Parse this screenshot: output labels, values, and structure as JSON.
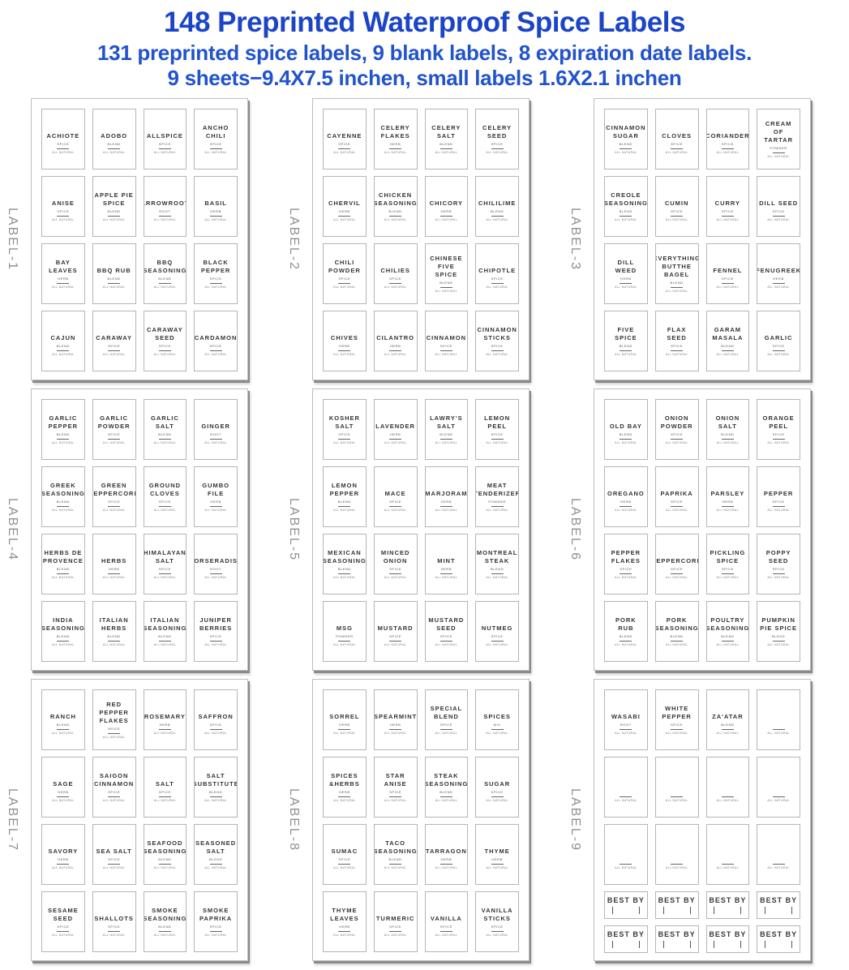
{
  "header": {
    "title": "148 Preprinted Waterproof Spice Labels",
    "line2": "131 preprinted spice labels, 9 blank labels, 8 expiration date labels.",
    "line3": "9 sheets−9.4X7.5 inchen, small labels 1.6X2.1 inchen"
  },
  "colors": {
    "header_blue": "#1b45c6",
    "header_blue_light": "#2153cc"
  },
  "common": {
    "footer_text": "ALL NATURAL",
    "best_by_text": "BEST BY"
  },
  "sheets": [
    {
      "name": "LABEL-1",
      "labels": [
        {
          "title": "ACHIOTE",
          "type": "SPICE"
        },
        {
          "title": "ADOBO",
          "type": "BLEND"
        },
        {
          "title": "ALLSPICE",
          "type": "SPICE"
        },
        {
          "title": "ANCHO\nCHILI",
          "type": "SPICE"
        },
        {
          "title": "ANISE",
          "type": "SPICE"
        },
        {
          "title": "APPLE PIE\nSPICE",
          "type": "BLEND"
        },
        {
          "title": "ARROWROOT",
          "type": "ROOT"
        },
        {
          "title": "BASIL",
          "type": "HERB"
        },
        {
          "title": "BAY\nLEAVES",
          "type": "HERB"
        },
        {
          "title": "BBQ RUB",
          "type": "BLEND"
        },
        {
          "title": "BBQ\nSEASONING",
          "type": "BLEND"
        },
        {
          "title": "BLACK\nPEPPER",
          "type": "SPICE"
        },
        {
          "title": "CAJUN",
          "type": "BLEND"
        },
        {
          "title": "CARAWAY",
          "type": "SPICE"
        },
        {
          "title": "CARAWAY\nSEED",
          "type": "SPICE"
        },
        {
          "title": "CARDAMON",
          "type": "SPICE"
        }
      ]
    },
    {
      "name": "LABEL-2",
      "labels": [
        {
          "title": "CAYENNE",
          "type": "SPICE"
        },
        {
          "title": "CELERY\nFLAKES",
          "type": "HERB"
        },
        {
          "title": "CELERY\nSALT",
          "type": "BLEND"
        },
        {
          "title": "CELERY\nSEED",
          "type": "SPICE"
        },
        {
          "title": "CHERVIL",
          "type": "HERB"
        },
        {
          "title": "CHICKEN\nSEASONING",
          "type": "BLEND"
        },
        {
          "title": "CHICORY",
          "type": "HERB"
        },
        {
          "title": "CHILILIME",
          "type": "BLEND"
        },
        {
          "title": "CHILI\nPOWDER",
          "type": "SPICE"
        },
        {
          "title": "CHILIES",
          "type": "SPICE"
        },
        {
          "title": "CHINESE\nFIVE SPICE",
          "type": "BLEND"
        },
        {
          "title": "CHIPOTLE",
          "type": "SPICE"
        },
        {
          "title": "CHIVES",
          "type": "HERB"
        },
        {
          "title": "CILANTRO",
          "type": "HERB"
        },
        {
          "title": "CINNAMON",
          "type": "SPICE"
        },
        {
          "title": "CINNAMON\nSTICKS",
          "type": "SPICE"
        }
      ]
    },
    {
      "name": "LABEL-3",
      "labels": [
        {
          "title": "CINNAMON\nSUGAR",
          "type": "BLEND"
        },
        {
          "title": "CLOVES",
          "type": "SPICE"
        },
        {
          "title": "CORIANDER",
          "type": "SPICE"
        },
        {
          "title": "CREAM\nOF TARTAR",
          "type": "POWDER"
        },
        {
          "title": "CREOLE\nSEASONING",
          "type": "BLEND"
        },
        {
          "title": "CUMIN",
          "type": "SPICE"
        },
        {
          "title": "CURRY",
          "type": "SPICE"
        },
        {
          "title": "DILL SEED",
          "type": "SPICE"
        },
        {
          "title": "DILL WEED",
          "type": "HERB"
        },
        {
          "title": "EVERYTHING\nBUTTHE\nBAGEL",
          "type": "BLEND"
        },
        {
          "title": "FENNEL",
          "type": "SPICE"
        },
        {
          "title": "FENUGREEK",
          "type": "HERB"
        },
        {
          "title": "FIVE\nSPICE",
          "type": "BLEND"
        },
        {
          "title": "FLAX\nSEED",
          "type": "SPICE"
        },
        {
          "title": "GARAM\nMASALA",
          "type": "BLEND"
        },
        {
          "title": "GARLIC",
          "type": "SPICE"
        }
      ]
    },
    {
      "name": "LABEL-4",
      "labels": [
        {
          "title": "GARLIC\nPEPPER",
          "type": "BLEND"
        },
        {
          "title": "GARLIC\nPOWDER",
          "type": "SPICE"
        },
        {
          "title": "GARLIC\nSALT",
          "type": "BLEND"
        },
        {
          "title": "GINGER",
          "type": "ROOT"
        },
        {
          "title": "GREEK\nSEASONING",
          "type": "BLEND"
        },
        {
          "title": "GREEN\nPEPPERCORN",
          "type": "SPICE"
        },
        {
          "title": "GROUND\nCLOVES",
          "type": "SPICE"
        },
        {
          "title": "GUMBO\nFILE",
          "type": "HERB"
        },
        {
          "title": "HERBS DE\nPROVENCE",
          "type": "BLEND"
        },
        {
          "title": "HERBS",
          "type": "HERB"
        },
        {
          "title": "HIMALAYAN\nSALT",
          "type": "SPICE"
        },
        {
          "title": "HORSERADISH",
          "type": "ROOT"
        },
        {
          "title": "INDIA\nSEASONING",
          "type": "BLEND"
        },
        {
          "title": "ITALIAN\nHERBS",
          "type": "BLEND"
        },
        {
          "title": "ITALIAN\nSEASONING",
          "type": "BLEND"
        },
        {
          "title": "JUNIPER\nBERRIES",
          "type": "SPICE"
        }
      ]
    },
    {
      "name": "LABEL-5",
      "labels": [
        {
          "title": "KOSHER\nSALT",
          "type": "SPICE"
        },
        {
          "title": "LAVENDER",
          "type": "HERB"
        },
        {
          "title": "LAWRY'S\nSALT",
          "type": "BLEND"
        },
        {
          "title": "LEMON\nPEEL",
          "type": "SPICE"
        },
        {
          "title": "LEMON\nPEPPER",
          "type": "BLEND"
        },
        {
          "title": "MACE",
          "type": "SPICE"
        },
        {
          "title": "MARJORAM",
          "type": "HERB"
        },
        {
          "title": "MEAT\nTENDERIZER",
          "type": "POWDER"
        },
        {
          "title": "MEXICAN\nSEASONING",
          "type": "BLEND"
        },
        {
          "title": "MINCED\nONION",
          "type": "SPICE"
        },
        {
          "title": "MINT",
          "type": "HERB"
        },
        {
          "title": "MONTREAL\nSTEAK",
          "type": "BLEND"
        },
        {
          "title": "MSG",
          "type": "POWDER"
        },
        {
          "title": "MUSTARD",
          "type": "SPICE"
        },
        {
          "title": "MUSTARD\nSEED",
          "type": "SPICE"
        },
        {
          "title": "NUTMEG",
          "type": "SPICE"
        }
      ]
    },
    {
      "name": "LABEL-6",
      "labels": [
        {
          "title": "OLD BAY",
          "type": "BLEND"
        },
        {
          "title": "ONION\nPOWDER",
          "type": "SPICE"
        },
        {
          "title": "ONION\nSALT",
          "type": "BLEND"
        },
        {
          "title": "ORANGE\nPEEL",
          "type": "SPICE"
        },
        {
          "title": "OREGANO",
          "type": "HERB"
        },
        {
          "title": "PAPRIKA",
          "type": "SPICE"
        },
        {
          "title": "PARSLEY",
          "type": "HERB"
        },
        {
          "title": "PEPPER",
          "type": "SPICE"
        },
        {
          "title": "PEPPER\nFLAKES",
          "type": "SPICE"
        },
        {
          "title": "PEPPERCORN",
          "type": "SPICE"
        },
        {
          "title": "PICKLING\nSPICE",
          "type": "SPICE"
        },
        {
          "title": "POPPY\nSEED",
          "type": "SPICE"
        },
        {
          "title": "PORK\nRUB",
          "type": "BLEND"
        },
        {
          "title": "PORK\nSEASONING",
          "type": "BLEND"
        },
        {
          "title": "POULTRY\nSEASONING",
          "type": "BLEND"
        },
        {
          "title": "PUMPKIN\nPIE SPICE",
          "type": "BLEND"
        }
      ]
    },
    {
      "name": "LABEL-7",
      "labels": [
        {
          "title": "RANCH",
          "type": "BLEND"
        },
        {
          "title": "RED\nPEPPER\nFLAKES",
          "type": "SPICE"
        },
        {
          "title": "ROSEMARY",
          "type": "HERB"
        },
        {
          "title": "SAFFRON",
          "type": "SPICE"
        },
        {
          "title": "SAGE",
          "type": "HERB"
        },
        {
          "title": "SAIGON\nCINNAMON",
          "type": "SPICE"
        },
        {
          "title": "SALT",
          "type": "SPICE"
        },
        {
          "title": "SALT\nSUBSTITUTE",
          "type": "BLEND"
        },
        {
          "title": "SAVORY",
          "type": "HERB"
        },
        {
          "title": "SEA SALT",
          "type": "SPICE"
        },
        {
          "title": "SEAFOOD\nSEASONING",
          "type": "BLEND"
        },
        {
          "title": "SEASONED\nSALT",
          "type": "BLEND"
        },
        {
          "title": "SESAME\nSEED",
          "type": "SPICE"
        },
        {
          "title": "SHALLOTS",
          "type": "SPICE"
        },
        {
          "title": "SMOKE\nSEASONING",
          "type": "BLEND"
        },
        {
          "title": "SMOKE\nPAPRIKA",
          "type": "SPICE"
        }
      ]
    },
    {
      "name": "LABEL-8",
      "labels": [
        {
          "title": "SORREL",
          "type": "HERB"
        },
        {
          "title": "SPEARMINT",
          "type": "HERB"
        },
        {
          "title": "SPECIAL\nBLEND",
          "type": "SPICE"
        },
        {
          "title": "SPICES",
          "type": "MIX"
        },
        {
          "title": "SPICES\n&HERBS",
          "type": "HERB"
        },
        {
          "title": "STAR\nANISE",
          "type": "SPICE"
        },
        {
          "title": "STEAK\nSEASONING",
          "type": "BLEND"
        },
        {
          "title": "SUGAR",
          "type": "SPICE"
        },
        {
          "title": "SUMAC",
          "type": "SPICE"
        },
        {
          "title": "TACO\nSEASONING",
          "type": "BLEND"
        },
        {
          "title": "TARRAGON",
          "type": "HERB"
        },
        {
          "title": "THYME",
          "type": "HERB"
        },
        {
          "title": "THYME\nLEAVES",
          "type": "HERB"
        },
        {
          "title": "TURMERIC",
          "type": "SPICE"
        },
        {
          "title": "VANILLA",
          "type": "SPICE"
        },
        {
          "title": "VANILLA\nSTICKS",
          "type": "SPICE"
        }
      ]
    },
    {
      "name": "LABEL-9",
      "labels": [
        {
          "title": "WASABI",
          "type": "ROOT"
        },
        {
          "title": "WHITE\nPEPPER",
          "type": "SPICE"
        },
        {
          "title": "ZA'ATAR",
          "type": "BLEND"
        },
        {
          "kind": "blank"
        },
        {
          "kind": "blank"
        },
        {
          "kind": "blank"
        },
        {
          "kind": "blank"
        },
        {
          "kind": "blank"
        },
        {
          "kind": "blank"
        },
        {
          "kind": "blank"
        },
        {
          "kind": "blank"
        },
        {
          "kind": "blank"
        },
        {
          "kind": "bestby"
        },
        {
          "kind": "bestby"
        },
        {
          "kind": "bestby"
        },
        {
          "kind": "bestby"
        },
        {
          "kind": "bestby"
        },
        {
          "kind": "bestby"
        },
        {
          "kind": "bestby"
        },
        {
          "kind": "bestby"
        }
      ]
    }
  ]
}
